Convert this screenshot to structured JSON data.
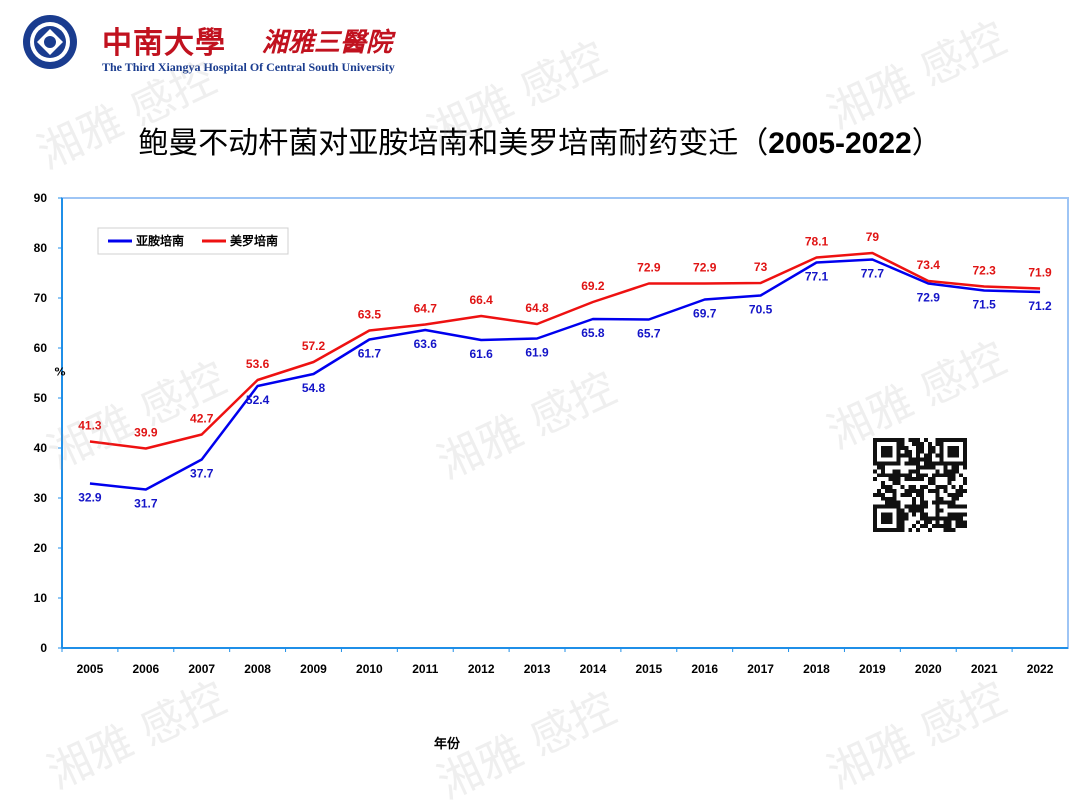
{
  "header": {
    "brand_cn": "中南大學",
    "brand_cn2": "湘雅三醫院",
    "brand_en": "The Third Xiangya Hospital Of Central South University"
  },
  "title": {
    "text": "鲍曼不动杆菌对亚胺培南和美罗培南耐药变迁（",
    "years": "2005-2022",
    "close": "）"
  },
  "watermark": "湘雅 感控",
  "chart_data": {
    "type": "line",
    "x": [
      "2005",
      "2006",
      "2007",
      "2008",
      "2009",
      "2010",
      "2011",
      "2012",
      "2013",
      "2014",
      "2015",
      "2016",
      "2017",
      "2018",
      "2019",
      "2020",
      "2021",
      "2022"
    ],
    "series": [
      {
        "name": "亚胺培南",
        "color": "#0000ee",
        "values": [
          32.9,
          31.7,
          37.7,
          52.4,
          54.8,
          61.7,
          63.6,
          61.6,
          61.9,
          65.8,
          65.7,
          69.7,
          70.5,
          77.1,
          77.7,
          72.9,
          71.5,
          71.2
        ]
      },
      {
        "name": "美罗培南",
        "color": "#ee1111",
        "values": [
          41.3,
          39.9,
          42.7,
          53.6,
          57.2,
          63.5,
          64.7,
          66.4,
          64.8,
          69.2,
          72.9,
          72.9,
          73,
          78.1,
          79,
          73.4,
          72.3,
          71.9
        ]
      }
    ],
    "xlabel": "年份",
    "ylabel": "%",
    "ylim": [
      0,
      90
    ],
    "yticks": [
      0,
      10,
      20,
      30,
      40,
      50,
      60,
      70,
      80,
      90
    ],
    "legend": "top-left",
    "grid": false
  }
}
